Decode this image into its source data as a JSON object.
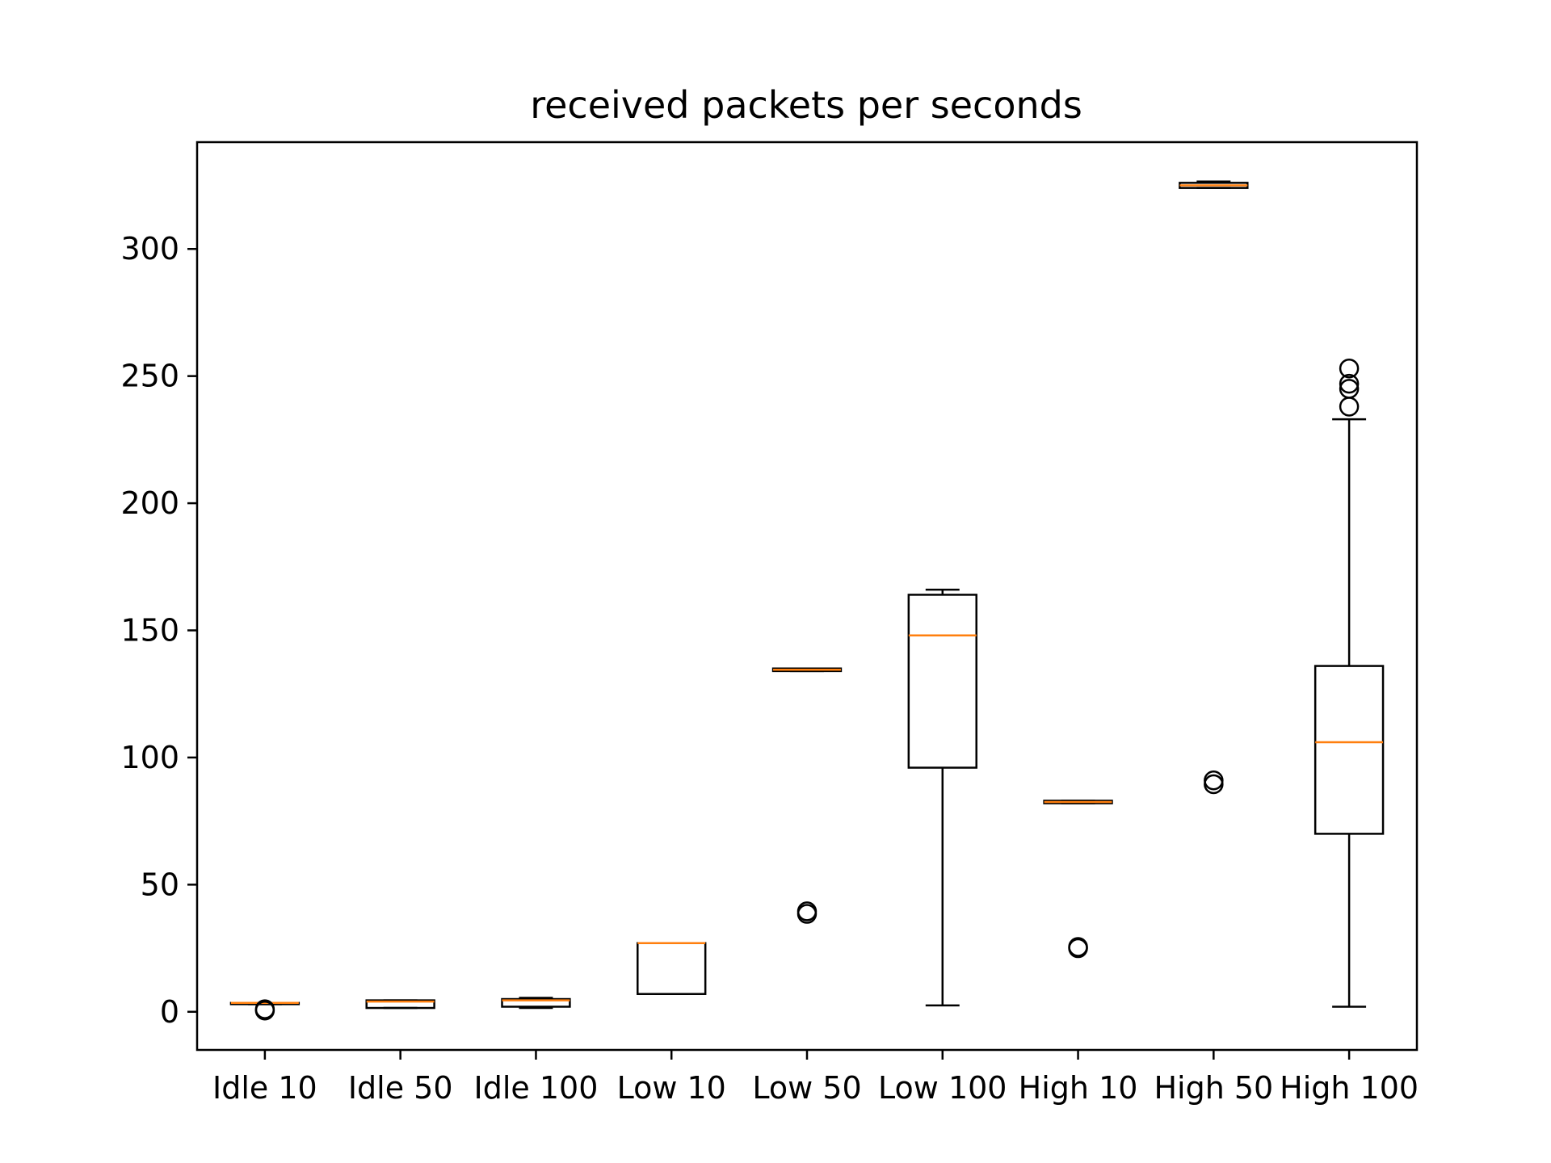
{
  "chart_data": {
    "type": "box",
    "title": "received packets per seconds",
    "xlabel": "",
    "ylabel": "",
    "ylim": [
      -15,
      342
    ],
    "yticks": [
      0,
      50,
      100,
      150,
      200,
      250,
      300
    ],
    "grid": false,
    "colors": {
      "box": "#000000",
      "median": "#ff7f0e",
      "axes": "#000000"
    },
    "categories": [
      "Idle 10",
      "Idle 50",
      "Idle 100",
      "Low 10",
      "Low 50",
      "Low 100",
      "High 10",
      "High 50",
      "High 100"
    ],
    "boxes": [
      {
        "whisker_low": 3,
        "q1": 3,
        "median": 3.5,
        "q3": 3.5,
        "whisker_high": 3.5,
        "outliers": [
          0.5,
          1
        ]
      },
      {
        "whisker_low": 1.5,
        "q1": 1.5,
        "median": 4,
        "q3": 4.5,
        "whisker_high": 4.5,
        "outliers": []
      },
      {
        "whisker_low": 1.5,
        "q1": 2,
        "median": 4.5,
        "q3": 5,
        "whisker_high": 5.5,
        "outliers": []
      },
      {
        "whisker_low": 7,
        "q1": 7,
        "median": 27,
        "q3": 27,
        "whisker_high": 27,
        "outliers": []
      },
      {
        "whisker_low": 134,
        "q1": 134,
        "median": 134.5,
        "q3": 135,
        "whisker_high": 135,
        "outliers": [
          38.5,
          39.5
        ]
      },
      {
        "whisker_low": 2.5,
        "q1": 96,
        "median": 148,
        "q3": 164,
        "whisker_high": 166,
        "outliers": []
      },
      {
        "whisker_low": 82,
        "q1": 82,
        "median": 82.5,
        "q3": 83,
        "whisker_high": 83,
        "outliers": [
          25,
          25.5
        ]
      },
      {
        "whisker_low": 324,
        "q1": 324,
        "median": 325,
        "q3": 326,
        "whisker_high": 326.5,
        "outliers": [
          89.5,
          91
        ]
      },
      {
        "whisker_low": 2,
        "q1": 70,
        "median": 106,
        "q3": 136,
        "whisker_high": 233,
        "outliers": [
          238,
          245,
          247,
          253
        ]
      }
    ]
  }
}
